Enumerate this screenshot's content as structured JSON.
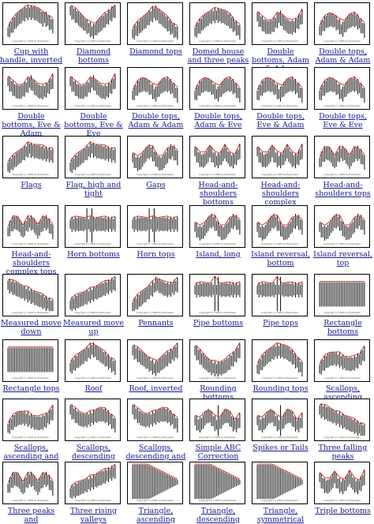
{
  "copyright": "Copyright (c) 2006 by Bulkowski",
  "colors": {
    "link": "#1a1a8c",
    "accent": "#cc2222"
  },
  "patterns": [
    {
      "id": "cup-with-handle-inverted",
      "name": "Cup with handle, inverted"
    },
    {
      "id": "diamond-bottoms",
      "name": "Diamond bottoms"
    },
    {
      "id": "diamond-tops",
      "name": "Diamond tops"
    },
    {
      "id": "domed-house-three-peaks",
      "name": "Domed house and three peaks"
    },
    {
      "id": "double-bottoms-adam-adam",
      "name": "Double bottoms, Adam & Adam"
    },
    {
      "id": "double-tops-adam-adam",
      "name": "Double tops, Adam & Adam"
    },
    {
      "id": "double-bottoms-eve-adam",
      "name": "Double bottoms, Eve & Adam"
    },
    {
      "id": "double-bottoms-eve-eve",
      "name": "Double bottoms, Eve & Eve"
    },
    {
      "id": "double-tops-adam-adam-2",
      "name": "Double tops, Adam & Adam"
    },
    {
      "id": "double-tops-adam-eve",
      "name": "Double tops, Adam & Eve"
    },
    {
      "id": "double-tops-eve-adam",
      "name": "Double tops, Eve & Adam"
    },
    {
      "id": "double-tops-eve-eve",
      "name": "Double tops, Eve & Eve"
    },
    {
      "id": "flags",
      "name": "Flags"
    },
    {
      "id": "flag-high-tight",
      "name": "Flag, high and tight"
    },
    {
      "id": "gaps",
      "name": "Gaps"
    },
    {
      "id": "hs-bottoms",
      "name": "Head-and-shoulders bottoms"
    },
    {
      "id": "hs-complex-bottoms",
      "name": "Head-and-shoulders complex bottoms"
    },
    {
      "id": "hs-tops",
      "name": "Head-and-shoulders tops"
    },
    {
      "id": "hs-complex-tops",
      "name": "Head-and-shoulders complex tops"
    },
    {
      "id": "horn-bottoms",
      "name": "Horn bottoms"
    },
    {
      "id": "horn-tops",
      "name": "Horn tops"
    },
    {
      "id": "island-long",
      "name": "Island, long"
    },
    {
      "id": "island-reversal-bottom",
      "name": "Island reversal, bottom"
    },
    {
      "id": "island-reversal-top",
      "name": "Island reversal, top"
    },
    {
      "id": "measured-move-down",
      "name": "Measured move down"
    },
    {
      "id": "measured-move-up",
      "name": "Measured move up"
    },
    {
      "id": "pennants",
      "name": "Pennants"
    },
    {
      "id": "pipe-bottoms",
      "name": "Pipe bottoms"
    },
    {
      "id": "pipe-tops",
      "name": "Pipe tops"
    },
    {
      "id": "rectangle-bottoms",
      "name": "Rectangle bottoms"
    },
    {
      "id": "rectangle-tops",
      "name": "Rectangle tops"
    },
    {
      "id": "roof",
      "name": "Roof"
    },
    {
      "id": "roof-inverted",
      "name": "Roof, inverted"
    },
    {
      "id": "rounding-bottoms",
      "name": "Rounding bottoms"
    },
    {
      "id": "rounding-tops",
      "name": "Rounding tops"
    },
    {
      "id": "scallops-ascending",
      "name": "Scallops, ascending"
    },
    {
      "id": "scallops-ascending-inverted",
      "name": "Scallops, ascending and inverted"
    },
    {
      "id": "scallops-descending",
      "name": "Scallops, descending"
    },
    {
      "id": "scallops-descending-inverted",
      "name": "Scallops, descending and inverted"
    },
    {
      "id": "simple-abc-correction",
      "name": "Simple ABC Correction"
    },
    {
      "id": "spikes-or-tails",
      "name": "Spikes or Tails"
    },
    {
      "id": "three-falling-peaks",
      "name": "Three falling peaks"
    },
    {
      "id": "three-peaks-and",
      "name": "Three peaks and"
    },
    {
      "id": "three-rising-valleys",
      "name": "Three rising valleys"
    },
    {
      "id": "triangle-ascending",
      "name": "Triangle, ascending"
    },
    {
      "id": "triangle-descending",
      "name": "Triangle, descending"
    },
    {
      "id": "triangle-symmetrical",
      "name": "Triangle, symmetrical"
    },
    {
      "id": "triple-bottoms",
      "name": "Triple bottoms"
    }
  ]
}
